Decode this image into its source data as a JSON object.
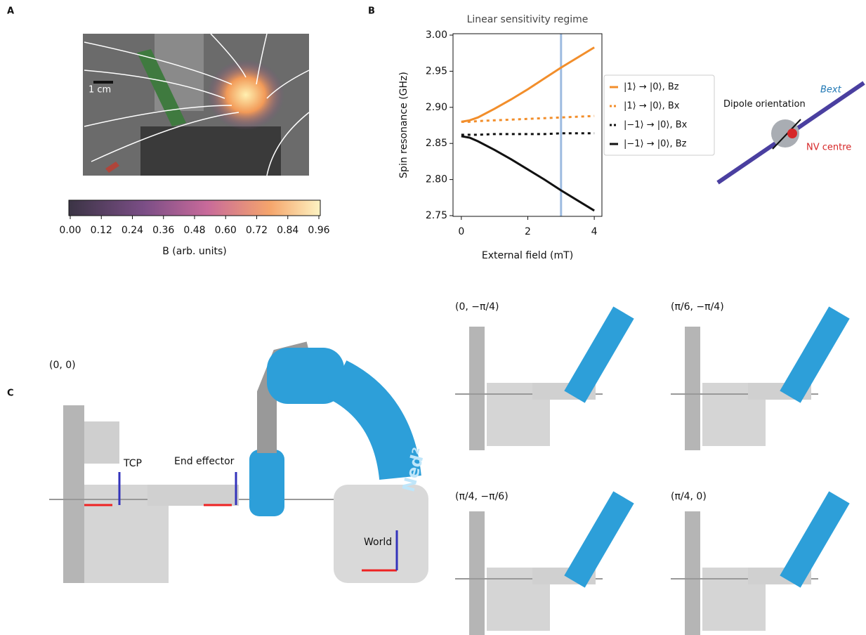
{
  "panels": {
    "a": "A",
    "b": "B",
    "c": "C"
  },
  "panel_a": {
    "scale_bar": "1 cm",
    "colorbar": {
      "label": "B (arb. units)",
      "lim": [
        0,
        0.96
      ],
      "ticks": [
        {
          "value": 0,
          "label": "0.00"
        },
        0.12,
        0.24,
        0.36,
        0.48,
        {
          "value": 0.6,
          "label": "0.60"
        },
        0.72,
        0.84,
        0.96
      ]
    }
  },
  "chart_data": {
    "type": "line",
    "title": "Linear sensitivity regime",
    "xlabel": "External field (mT)",
    "ylabel": "Spin resonance (GHz)",
    "x": [
      0,
      0.25,
      0.5,
      1,
      1.5,
      2,
      2.5,
      3,
      3.5,
      4
    ],
    "series": [
      {
        "name": "|1⟩ → |0⟩, Bz",
        "color": "#f28e2b",
        "style": "solid",
        "values": [
          2.88,
          2.882,
          2.886,
          2.898,
          2.911,
          2.925,
          2.94,
          2.955,
          2.969,
          2.983
        ]
      },
      {
        "name": "|1⟩ → |0⟩, Bx",
        "color": "#f28e2b",
        "style": "dotted",
        "values": [
          2.88,
          2.88,
          2.881,
          2.882,
          2.883,
          2.884,
          2.885,
          2.886,
          2.887,
          2.888
        ]
      },
      {
        "name": "|−1⟩ → |0⟩, Bx",
        "color": "#111111",
        "style": "dotted",
        "values": [
          2.862,
          2.862,
          2.862,
          2.863,
          2.863,
          2.863,
          2.863,
          2.864,
          2.864,
          2.864
        ]
      },
      {
        "name": "|−1⟩ → |0⟩, Bz",
        "color": "#111111",
        "style": "solid",
        "values": [
          2.86,
          2.858,
          2.853,
          2.841,
          2.828,
          2.814,
          2.8,
          2.785,
          2.771,
          2.757
        ]
      }
    ],
    "vline": {
      "x": 3,
      "color": "#9dbbe0"
    },
    "xlim": [
      -0.25,
      4.23
    ],
    "xticks": [
      0,
      2,
      4
    ],
    "ylim": [
      2.75,
      3.0
    ],
    "yticks": [
      2.75,
      {
        "value": 2.8,
        "label": "2.80"
      },
      2.85,
      {
        "value": 2.9,
        "label": "2.90"
      },
      2.95,
      {
        "value": 3.0,
        "label": "3.00"
      }
    ]
  },
  "dipole": {
    "label": "Dipole orientation",
    "field": "Bext",
    "centre": "NV centre"
  },
  "panel_c": {
    "main": {
      "pose": "(0, 0)",
      "tcp": "TCP",
      "effector": "End effector",
      "world": "World",
      "brand": "Ned²"
    },
    "poses": [
      "(0, −π/4)",
      "(π/6, −π/4)",
      "(π/4, −π/6)",
      "(π/4, 0)"
    ]
  }
}
